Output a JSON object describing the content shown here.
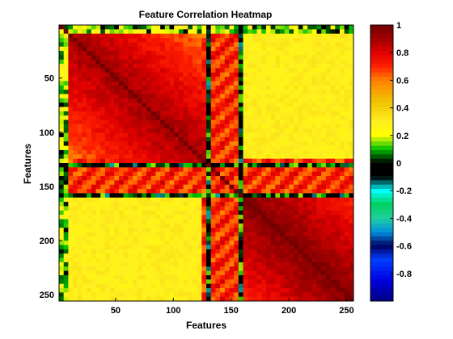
{
  "chart_data": {
    "type": "heatmap",
    "title": "Feature Correlation Heatmap",
    "xlabel": "Features",
    "ylabel": "Features",
    "size": 256,
    "xlim": [
      1,
      256
    ],
    "ylim": [
      1,
      256
    ],
    "y_direction": "reversed",
    "x_ticks": [
      50,
      100,
      150,
      200,
      250
    ],
    "y_ticks": [
      50,
      100,
      150,
      200,
      250
    ],
    "colorbar": {
      "range": [
        -1,
        1
      ],
      "ticks": [
        1,
        0.8,
        0.6,
        0.4,
        0.2,
        0,
        -0.2,
        -0.4,
        -0.6,
        -0.8
      ],
      "tick_labels": [
        "1",
        "0.8",
        "0.6",
        "0.4",
        "0.2",
        "0",
        "-0.2",
        "-0.4",
        "-0.6",
        "-0.8"
      ],
      "colormap": [
        {
          "v": -1.0,
          "color": "#000080"
        },
        {
          "v": -0.85,
          "color": "#0000e0"
        },
        {
          "v": -0.7,
          "color": "#0040ff"
        },
        {
          "v": -0.6,
          "color": "#000060"
        },
        {
          "v": -0.5,
          "color": "#0090e0"
        },
        {
          "v": -0.4,
          "color": "#20d0a0"
        },
        {
          "v": -0.3,
          "color": "#00d060"
        },
        {
          "v": -0.2,
          "color": "#00ffff"
        },
        {
          "v": -0.1,
          "color": "#000000"
        },
        {
          "v": 0.0,
          "color": "#000000"
        },
        {
          "v": 0.1,
          "color": "#00c000"
        },
        {
          "v": 0.2,
          "color": "#ffff00"
        },
        {
          "v": 0.3,
          "color": "#ffef20"
        },
        {
          "v": 0.45,
          "color": "#f0c000"
        },
        {
          "v": 0.6,
          "color": "#ff8000"
        },
        {
          "v": 0.7,
          "color": "#ff2000"
        },
        {
          "v": 0.8,
          "color": "#e00000"
        },
        {
          "v": 0.9,
          "color": "#a00000"
        },
        {
          "v": 1.0,
          "color": "#700000"
        }
      ]
    },
    "structure": {
      "diagonal_value": 1.0,
      "blocks": [
        {
          "range": [
            1,
            125
          ],
          "value": 0.9
        },
        {
          "range": [
            155,
            256
          ],
          "value": 0.95
        }
      ],
      "off_block_value": 0.3,
      "low_correlation_bands": [
        {
          "range": [
            1,
            8
          ],
          "value": 0.15
        },
        {
          "range": [
            128,
            132
          ],
          "value": 0.0
        },
        {
          "range": [
            155,
            158
          ],
          "value": 0.0
        }
      ],
      "high_correlation_bands": [
        {
          "range": [
            125,
            160
          ],
          "value": 0.85
        }
      ]
    }
  }
}
